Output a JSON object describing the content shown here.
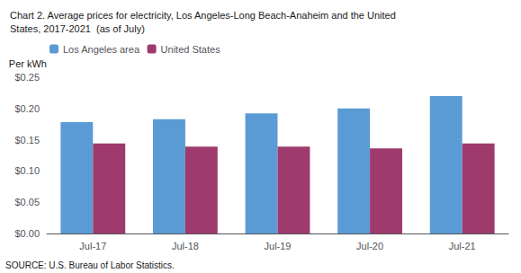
{
  "chart_data": {
    "type": "bar",
    "title": "Chart 2. Average prices for electricity, Los Angeles-Long Beach-Anaheim and the United\nStates, 2017-2021  (as of July)",
    "ylabel": "Per kWh",
    "annotations": [
      "SOURCE: U.S. Bureau of Labor Statistics."
    ],
    "categories": [
      "Jul-17",
      "Jul-18",
      "Jul-19",
      "Jul-20",
      "Jul-21"
    ],
    "series": [
      {
        "name": "Los Angeles area",
        "color": "#5B9BD5",
        "values": [
          0.178,
          0.183,
          0.192,
          0.2,
          0.22
        ]
      },
      {
        "name": "United States",
        "color": "#9E3A6C",
        "values": [
          0.144,
          0.139,
          0.139,
          0.136,
          0.144
        ]
      }
    ],
    "ylim": [
      0,
      0.25
    ],
    "yticks": [
      {
        "value": 0.0,
        "label": "$0.00"
      },
      {
        "value": 0.05,
        "label": "$0.05"
      },
      {
        "value": 0.1,
        "label": "$0.10"
      },
      {
        "value": 0.15,
        "label": "$0.15"
      },
      {
        "value": 0.2,
        "label": "$0.20"
      },
      {
        "value": 0.25,
        "label": "$0.25"
      }
    ],
    "grid": false,
    "legend": "upper left"
  }
}
